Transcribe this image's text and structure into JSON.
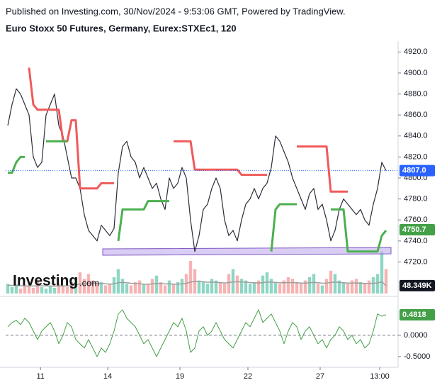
{
  "header": {
    "line1": "Published on Investing.com, 30/Nov/2024 - 9:53:06 GMT, Powered by TradingView.",
    "line2": "Euro Stoxx 50 Futures, Germany, Eurex:STXEc1, 120"
  },
  "logo": "Investing",
  "logo_suffix": ".com",
  "chart_data": [
    {
      "type": "line",
      "xlim": [
        0,
        90
      ],
      "xticks": [
        {
          "value": 8.2,
          "label": "11"
        },
        {
          "value": 24,
          "label": "14"
        },
        {
          "value": 41,
          "label": "19"
        },
        {
          "value": 57,
          "label": "22"
        },
        {
          "value": 74,
          "label": "27"
        },
        {
          "value": 88,
          "label": "13:00"
        }
      ],
      "ylim": [
        4696,
        4929
      ],
      "yticks": [
        {
          "value": 4720,
          "label": "4720.0"
        },
        {
          "value": 4740,
          "label": "4740.0"
        },
        {
          "value": 4760,
          "label": "4760.0"
        },
        {
          "value": 4780,
          "label": "4780.0"
        },
        {
          "value": 4800,
          "label": "4800.0"
        },
        {
          "value": 4820,
          "label": "4820.0"
        },
        {
          "value": 4840,
          "label": "4840.0"
        },
        {
          "value": 4860,
          "label": "4860.0"
        },
        {
          "value": 4880,
          "label": "4880.0"
        },
        {
          "value": 4900,
          "label": "4900.0"
        },
        {
          "value": 4920,
          "label": "4920.0"
        }
      ],
      "series": [
        {
          "color": "#2a2e39",
          "values": [
            4850,
            4870,
            4885,
            4880,
            4870,
            4860,
            4820,
            4810,
            4815,
            4860,
            4870,
            4880,
            4850,
            4840,
            4820,
            4800,
            4800,
            4790,
            4765,
            4750,
            4745,
            4740,
            4755,
            4750,
            4745,
            4752,
            4805,
            4830,
            4835,
            4820,
            4815,
            4800,
            4810,
            4800,
            4790,
            4795,
            4780,
            4770,
            4800,
            4790,
            4795,
            4810,
            4800,
            4760,
            4730,
            4745,
            4770,
            4775,
            4790,
            4800,
            4790,
            4760,
            4745,
            4750,
            4740,
            4760,
            4775,
            4780,
            4790,
            4780,
            4790,
            4795,
            4810,
            4840,
            4835,
            4825,
            4815,
            4800,
            4790,
            4780,
            4770,
            4785,
            4790,
            4770,
            4775,
            4760,
            4740,
            4750,
            4770,
            4780,
            4775,
            4770,
            4765,
            4770,
            4760,
            4755,
            4775,
            4790,
            4815,
            4807
          ]
        },
        {
          "color": "#f05a5a",
          "values": [
            null,
            null,
            null,
            null,
            null,
            4905,
            4870,
            4865,
            4865,
            4865,
            4865,
            4865,
            4865,
            4835,
            4835,
            4855,
            4855,
            4790,
            4790,
            4790,
            4790,
            4790,
            4795,
            4795,
            4795,
            4795,
            null,
            null,
            null,
            null,
            null,
            null,
            null,
            null,
            null,
            null,
            null,
            null,
            null,
            4835,
            4835,
            4835,
            4835,
            4835,
            4808,
            4808,
            4808,
            4808,
            4808,
            4808,
            4808,
            4808,
            4808,
            4808,
            4808,
            4803,
            4803,
            4803,
            4803,
            4803,
            4803,
            4803,
            null,
            null,
            null,
            null,
            null,
            null,
            4830,
            4830,
            4830,
            4830,
            4830,
            4830,
            4830,
            4830,
            4787,
            4787,
            4787,
            4787,
            4787,
            null,
            null,
            null,
            null,
            null,
            null,
            null,
            null,
            null
          ]
        },
        {
          "color": "#4caf50",
          "values": [
            4805,
            4805,
            4815,
            4820,
            4820,
            null,
            null,
            null,
            null,
            4835,
            4835,
            4835,
            4835,
            4835,
            4835,
            null,
            null,
            null,
            null,
            null,
            null,
            null,
            null,
            null,
            null,
            null,
            4740,
            4770,
            4770,
            4770,
            4770,
            4770,
            4770,
            4778,
            4778,
            4778,
            4778,
            4778,
            4778,
            null,
            null,
            null,
            null,
            null,
            null,
            null,
            null,
            null,
            null,
            null,
            null,
            null,
            null,
            null,
            null,
            null,
            null,
            null,
            null,
            null,
            null,
            null,
            4730,
            4770,
            4775,
            4775,
            4775,
            4775,
            4775,
            null,
            null,
            null,
            null,
            null,
            null,
            null,
            4770,
            4770,
            4770,
            4770,
            4730,
            4730,
            4730,
            4730,
            4730,
            4730,
            4730,
            4730,
            4745,
            4750
          ]
        }
      ],
      "last_labels": [
        {
          "value": 4807,
          "label": "4807.0",
          "color": "#2962ff"
        },
        {
          "value": 4750.7,
          "label": "4750.7",
          "color": "#43a047"
        }
      ]
    },
    {
      "type": "bar",
      "ylim": [
        0,
        300
      ],
      "up_color": "#8fd6c4",
      "down_color": "#f6b3b3",
      "ma_color": "#9e9e9e",
      "values": [
        60,
        40,
        55,
        30,
        45,
        50,
        35,
        80,
        40,
        30,
        45,
        35,
        60,
        50,
        40,
        70,
        100,
        130,
        90,
        120,
        80,
        60,
        70,
        50,
        60,
        100,
        150,
        90,
        60,
        50,
        70,
        80,
        55,
        60,
        90,
        110,
        70,
        50,
        80,
        60,
        70,
        90,
        120,
        200,
        150,
        80,
        70,
        60,
        90,
        80,
        70,
        60,
        120,
        150,
        110,
        90,
        80,
        60,
        70,
        80,
        110,
        130,
        90,
        70,
        60,
        80,
        100,
        90,
        70,
        60,
        80,
        100,
        120,
        60,
        50,
        90,
        140,
        120,
        80,
        70,
        60,
        80,
        90,
        70,
        60,
        80,
        100,
        120,
        260,
        150
      ],
      "ma": [
        50,
        50,
        49,
        48,
        47,
        47,
        46,
        48,
        48,
        47,
        46,
        45,
        46,
        47,
        47,
        48,
        52,
        58,
        60,
        63,
        64,
        63,
        62,
        60,
        58,
        60,
        66,
        68,
        66,
        63,
        61,
        60,
        58,
        57,
        59,
        62,
        61,
        59,
        59,
        58,
        58,
        59,
        62,
        70,
        75,
        74,
        72,
        69,
        70,
        69,
        67,
        65,
        67,
        71,
        72,
        71,
        70,
        67,
        66,
        65,
        67,
        70,
        70,
        68,
        66,
        66,
        67,
        67,
        66,
        64,
        64,
        66,
        68,
        66,
        63,
        64,
        68,
        70,
        68,
        66,
        64,
        64,
        65,
        64,
        62,
        62,
        63,
        65,
        72,
        48.349
      ],
      "last_label": {
        "value": 48.349,
        "label": "48.349K",
        "color": "#131722"
      }
    },
    {
      "type": "line",
      "ylim": [
        -0.7,
        0.88
      ],
      "yticks": [
        {
          "value": 0,
          "label": "0.0000"
        },
        {
          "value": -0.5,
          "label": "-0.5000"
        }
      ],
      "color": "#43a047",
      "values": [
        0.2,
        0.3,
        0.35,
        0.25,
        0.4,
        0.3,
        0.1,
        -0.1,
        0.1,
        0.2,
        0.3,
        0.1,
        -0.2,
        0.0,
        0.3,
        0.2,
        -0.1,
        -0.2,
        -0.3,
        -0.1,
        -0.3,
        -0.5,
        -0.3,
        -0.4,
        -0.2,
        0.1,
        0.5,
        0.6,
        0.4,
        0.3,
        0.2,
        0.0,
        -0.2,
        -0.1,
        -0.3,
        -0.5,
        -0.3,
        -0.1,
        0.1,
        0.3,
        0.2,
        0.4,
        0.1,
        -0.4,
        -0.3,
        0.1,
        0.2,
        0.0,
        0.1,
        0.3,
        0.1,
        -0.1,
        -0.2,
        -0.3,
        -0.1,
        0.1,
        0.3,
        0.2,
        0.4,
        0.6,
        0.3,
        0.4,
        0.5,
        0.3,
        0.1,
        -0.2,
        0.1,
        0.3,
        0.2,
        -0.1,
        0.1,
        0.2,
        0.0,
        -0.2,
        -0.1,
        -0.3,
        -0.1,
        0.0,
        0.2,
        0.1,
        -0.1,
        0.0,
        -0.2,
        -0.1,
        -0.3,
        -0.2,
        0.1,
        0.5,
        0.45,
        0.4818
      ],
      "last_label": {
        "value": 0.4818,
        "color": "#43a047"
      }
    }
  ]
}
